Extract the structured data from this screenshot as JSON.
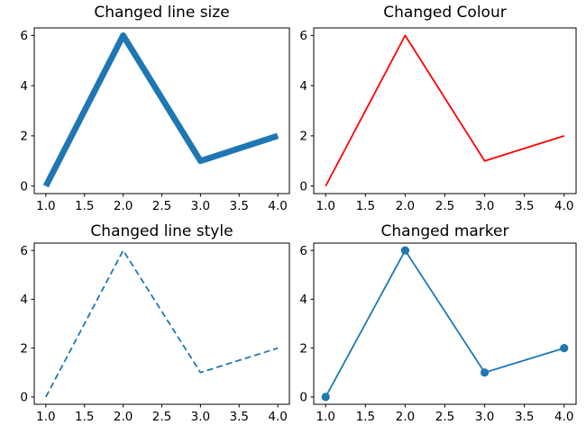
{
  "figure": {
    "background": "#ffffff",
    "text_color": "#000000",
    "spine_color": "#000000"
  },
  "chart_data": [
    {
      "type": "line",
      "title": "Changed line size",
      "x": [
        1,
        2,
        3,
        4
      ],
      "y": [
        0,
        6,
        1,
        2
      ],
      "line_color": "#1f77b4",
      "line_width": 6.8,
      "line_style": "solid",
      "marker": "none",
      "marker_size": 0,
      "xlim": [
        0.85,
        4.15
      ],
      "ylim": [
        -0.3,
        6.3
      ],
      "xtick_values": [
        1.0,
        1.5,
        2.0,
        2.5,
        3.0,
        3.5,
        4.0
      ],
      "xtick_labels": [
        "1.0",
        "1.5",
        "2.0",
        "2.5",
        "3.0",
        "3.5",
        "4.0"
      ],
      "ytick_values": [
        0,
        2,
        4,
        6
      ],
      "ytick_labels": [
        "0",
        "2",
        "4",
        "6"
      ],
      "grid": false,
      "legend": "none"
    },
    {
      "type": "line",
      "title": "Changed Colour",
      "x": [
        1,
        2,
        3,
        4
      ],
      "y": [
        0,
        6,
        1,
        2
      ],
      "line_color": "#ff0000",
      "line_width": 1.8,
      "line_style": "solid",
      "marker": "none",
      "marker_size": 0,
      "xlim": [
        0.85,
        4.15
      ],
      "ylim": [
        -0.3,
        6.3
      ],
      "xtick_values": [
        1.0,
        1.5,
        2.0,
        2.5,
        3.0,
        3.5,
        4.0
      ],
      "xtick_labels": [
        "1.0",
        "1.5",
        "2.0",
        "2.5",
        "3.0",
        "3.5",
        "4.0"
      ],
      "ytick_values": [
        0,
        2,
        4,
        6
      ],
      "ytick_labels": [
        "0",
        "2",
        "4",
        "6"
      ],
      "grid": false,
      "legend": "none"
    },
    {
      "type": "line",
      "title": "Changed line style",
      "x": [
        1,
        2,
        3,
        4
      ],
      "y": [
        0,
        6,
        1,
        2
      ],
      "line_color": "#1f77b4",
      "line_width": 1.8,
      "line_style": "dashed",
      "marker": "none",
      "marker_size": 0,
      "xlim": [
        0.85,
        4.15
      ],
      "ylim": [
        -0.3,
        6.3
      ],
      "xtick_values": [
        1.0,
        1.5,
        2.0,
        2.5,
        3.0,
        3.5,
        4.0
      ],
      "xtick_labels": [
        "1.0",
        "1.5",
        "2.0",
        "2.5",
        "3.0",
        "3.5",
        "4.0"
      ],
      "ytick_values": [
        0,
        2,
        4,
        6
      ],
      "ytick_labels": [
        "0",
        "2",
        "4",
        "6"
      ],
      "grid": false,
      "legend": "none"
    },
    {
      "type": "line",
      "title": "Changed marker",
      "x": [
        1,
        2,
        3,
        4
      ],
      "y": [
        0,
        6,
        1,
        2
      ],
      "line_color": "#1f77b4",
      "line_width": 1.8,
      "line_style": "solid",
      "marker": "circle",
      "marker_size": 4.6,
      "xlim": [
        0.85,
        4.15
      ],
      "ylim": [
        -0.3,
        6.3
      ],
      "xtick_values": [
        1.0,
        1.5,
        2.0,
        2.5,
        3.0,
        3.5,
        4.0
      ],
      "xtick_labels": [
        "1.0",
        "1.5",
        "2.0",
        "2.5",
        "3.0",
        "3.5",
        "4.0"
      ],
      "ytick_values": [
        0,
        2,
        4,
        6
      ],
      "ytick_labels": [
        "0",
        "2",
        "4",
        "6"
      ],
      "grid": false,
      "legend": "none"
    }
  ]
}
